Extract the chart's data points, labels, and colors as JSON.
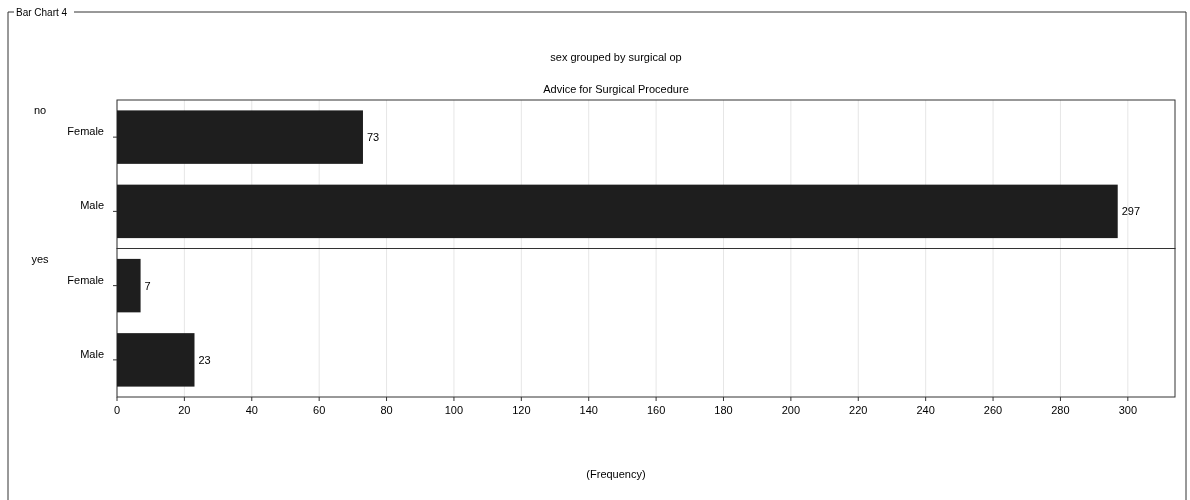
{
  "chart_data": {
    "type": "bar",
    "orientation": "horizontal",
    "title": "sex grouped by surgical op",
    "subtitle": "Advice for Surgical Procedure",
    "xlabel": "(Frequency)",
    "categories": [
      "Female",
      "Male",
      "Female",
      "Male"
    ],
    "values": [
      73,
      297,
      7,
      23
    ],
    "color": "#1e1e1e",
    "xlim": [
      0,
      314
    ],
    "xticks": [
      0,
      20,
      40,
      60,
      80,
      100,
      120,
      140,
      160,
      180,
      200,
      220,
      240,
      260,
      280,
      300
    ],
    "grid": "x",
    "data_labels": true,
    "annotations": [
      "Bar Chart 4",
      "no",
      "yes"
    ]
  }
}
